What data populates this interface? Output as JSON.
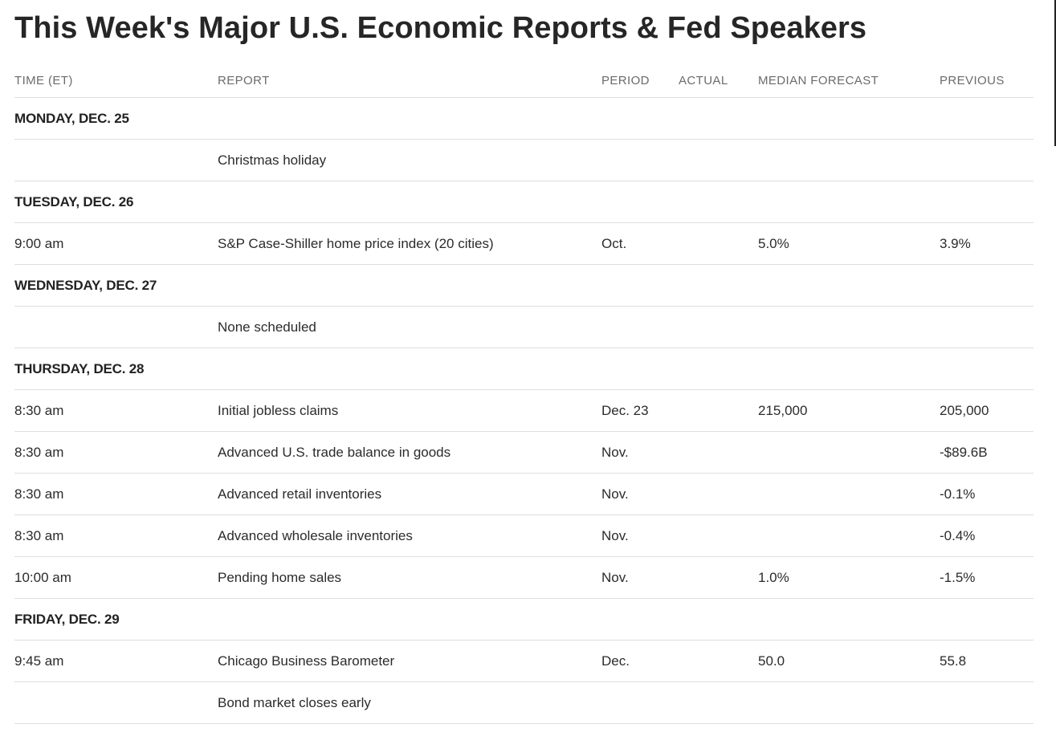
{
  "title": "This Week's Major U.S. Economic Reports & Fed Speakers",
  "columns": {
    "time": "TIME (ET)",
    "report": "REPORT",
    "period": "PERIOD",
    "actual": "ACTUAL",
    "forecast": "MEDIAN FORECAST",
    "previous": "PREVIOUS"
  },
  "rows": [
    {
      "type": "day",
      "label": "MONDAY, DEC. 25"
    },
    {
      "type": "item",
      "time": "",
      "report": "Christmas holiday",
      "period": "",
      "actual": "",
      "forecast": "",
      "previous": ""
    },
    {
      "type": "day",
      "label": "TUESDAY, DEC. 26"
    },
    {
      "type": "item",
      "time": "9:00 am",
      "report": "S&P Case-Shiller home price index (20 cities)",
      "period": "Oct.",
      "actual": "",
      "forecast": "5.0%",
      "previous": "3.9%"
    },
    {
      "type": "day",
      "label": "WEDNESDAY, DEC. 27"
    },
    {
      "type": "item",
      "time": "",
      "report": "None scheduled",
      "period": "",
      "actual": "",
      "forecast": "",
      "previous": ""
    },
    {
      "type": "day",
      "label": "THURSDAY, DEC. 28"
    },
    {
      "type": "item",
      "time": "8:30 am",
      "report": "Initial jobless claims",
      "period": "Dec. 23",
      "actual": "",
      "forecast": "215,000",
      "previous": "205,000"
    },
    {
      "type": "item",
      "time": "8:30 am",
      "report": "Advanced U.S. trade balance in goods",
      "period": "Nov.",
      "actual": "",
      "forecast": "",
      "previous": "-$89.6B"
    },
    {
      "type": "item",
      "time": "8:30 am",
      "report": "Advanced retail inventories",
      "period": "Nov.",
      "actual": "",
      "forecast": "",
      "previous": "-0.1%"
    },
    {
      "type": "item",
      "time": "8:30 am",
      "report": "Advanced wholesale inventories",
      "period": "Nov.",
      "actual": "",
      "forecast": "",
      "previous": "-0.4%"
    },
    {
      "type": "item",
      "time": "10:00 am",
      "report": "Pending home sales",
      "period": "Nov.",
      "actual": "",
      "forecast": "1.0%",
      "previous": "-1.5%"
    },
    {
      "type": "day",
      "label": "FRIDAY, DEC. 29"
    },
    {
      "type": "item",
      "time": "9:45 am",
      "report": "Chicago Business Barometer",
      "period": "Dec.",
      "actual": "",
      "forecast": "50.0",
      "previous": "55.8"
    },
    {
      "type": "item",
      "time": "",
      "report": "Bond market closes early",
      "period": "",
      "actual": "",
      "forecast": "",
      "previous": ""
    }
  ]
}
